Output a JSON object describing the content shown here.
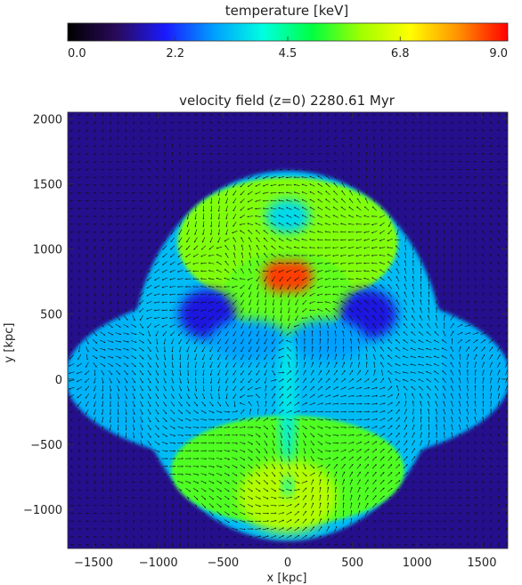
{
  "chart_data": {
    "type": "heatmap",
    "colorbar": {
      "title": "temperature [keV]",
      "min": 0.0,
      "max": 9.0,
      "tick_labels": [
        "0.0",
        "2.2",
        "4.5",
        "6.8",
        "9.0"
      ],
      "ticks": [
        0.0,
        2.2,
        4.5,
        6.8,
        9.0
      ],
      "colormap": [
        "#000000",
        "#2a0a5a",
        "#1a1aff",
        "#00a0ff",
        "#00ffe0",
        "#00ff40",
        "#a0ff00",
        "#ffff00",
        "#ff9000",
        "#ff0000"
      ]
    },
    "title": "velocity field (z=0)   2280.61 Myr",
    "xlabel": "x [kpc]",
    "ylabel": "y [kpc]",
    "xlim": [
      -1700,
      1700
    ],
    "ylim": [
      -1300,
      2050
    ],
    "xticks": [
      -1500,
      -1000,
      -500,
      0,
      500,
      1000,
      1500
    ],
    "xtick_labels": [
      "−1500",
      "−1000",
      "−500",
      "0",
      "500",
      "1000",
      "1500"
    ],
    "yticks": [
      -1000,
      -500,
      0,
      500,
      1000,
      1500,
      2000
    ],
    "ytick_labels": [
      "−1000",
      "−500",
      "0",
      "500",
      "1000",
      "1500",
      "2000"
    ],
    "background_keV": 1.3,
    "features": [
      {
        "shape": "ellipse",
        "cx": 0,
        "cy": 20,
        "rx": 1720,
        "ry": 700,
        "keV": 3.2
      },
      {
        "shape": "ellipse",
        "cx": 0,
        "cy": 180,
        "rx": 1200,
        "ry": 1420,
        "keV": 3.3
      },
      {
        "shape": "ellipse",
        "cx": 0,
        "cy": 1050,
        "rx": 850,
        "ry": 500,
        "keV": 5.8
      },
      {
        "shape": "ellipse",
        "cx": 0,
        "cy": 650,
        "rx": 500,
        "ry": 330,
        "keV": 5.6
      },
      {
        "shape": "ellipse",
        "cx": 0,
        "cy": -700,
        "rx": 900,
        "ry": 420,
        "keV": 5.5
      },
      {
        "shape": "ellipse",
        "cx": 0,
        "cy": -900,
        "rx": 380,
        "ry": 280,
        "keV": 6.2
      },
      {
        "shape": "ellipse",
        "cx": 0,
        "cy": 1250,
        "rx": 170,
        "ry": 130,
        "keV": 3.6
      },
      {
        "shape": "ellipse",
        "cx": -70,
        "cy": 790,
        "rx": 120,
        "ry": 120,
        "keV": 8.6
      },
      {
        "shape": "ellipse",
        "cx": 70,
        "cy": 790,
        "rx": 120,
        "ry": 120,
        "keV": 8.6
      },
      {
        "shape": "ellipse",
        "cx": -620,
        "cy": 500,
        "rx": 220,
        "ry": 190,
        "keV": 1.8
      },
      {
        "shape": "ellipse",
        "cx": 620,
        "cy": 500,
        "rx": 220,
        "ry": 190,
        "keV": 1.8
      },
      {
        "shape": "ellipse",
        "cx": -300,
        "cy": 300,
        "rx": 300,
        "ry": 160,
        "keV": 3.0
      },
      {
        "shape": "ellipse",
        "cx": 300,
        "cy": 300,
        "rx": 300,
        "ry": 160,
        "keV": 3.0
      },
      {
        "shape": "ellipse",
        "cx": 0,
        "cy": -150,
        "rx": 60,
        "ry": 500,
        "keV": 3.8
      },
      {
        "shape": "ellipse",
        "cx": 0,
        "cy": -820,
        "rx": 40,
        "ry": 80,
        "keV": 4.2
      }
    ],
    "vector_field": {
      "grid_spacing_kpc": 60,
      "description": "velocity arrows"
    }
  }
}
